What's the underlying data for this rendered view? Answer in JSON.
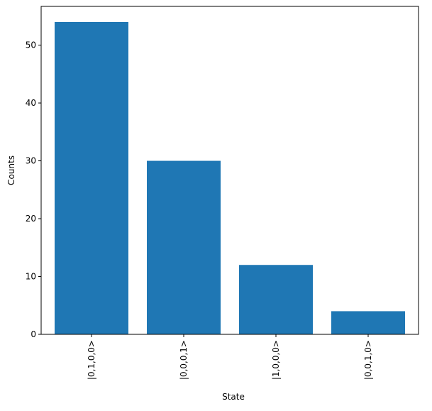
{
  "chart_data": {
    "type": "bar",
    "x_label": "State",
    "y_label": "Counts",
    "categories": [
      "|0,1,0,0>",
      "|0,0,0,1>",
      "|1,0,0,0>",
      "|0,0,1,0>"
    ],
    "values": [
      54,
      30,
      12,
      4
    ],
    "color": "#1f77b4",
    "ylim": [
      0,
      56.7
    ],
    "yticks": [
      0,
      10,
      20,
      30,
      40,
      50
    ]
  }
}
